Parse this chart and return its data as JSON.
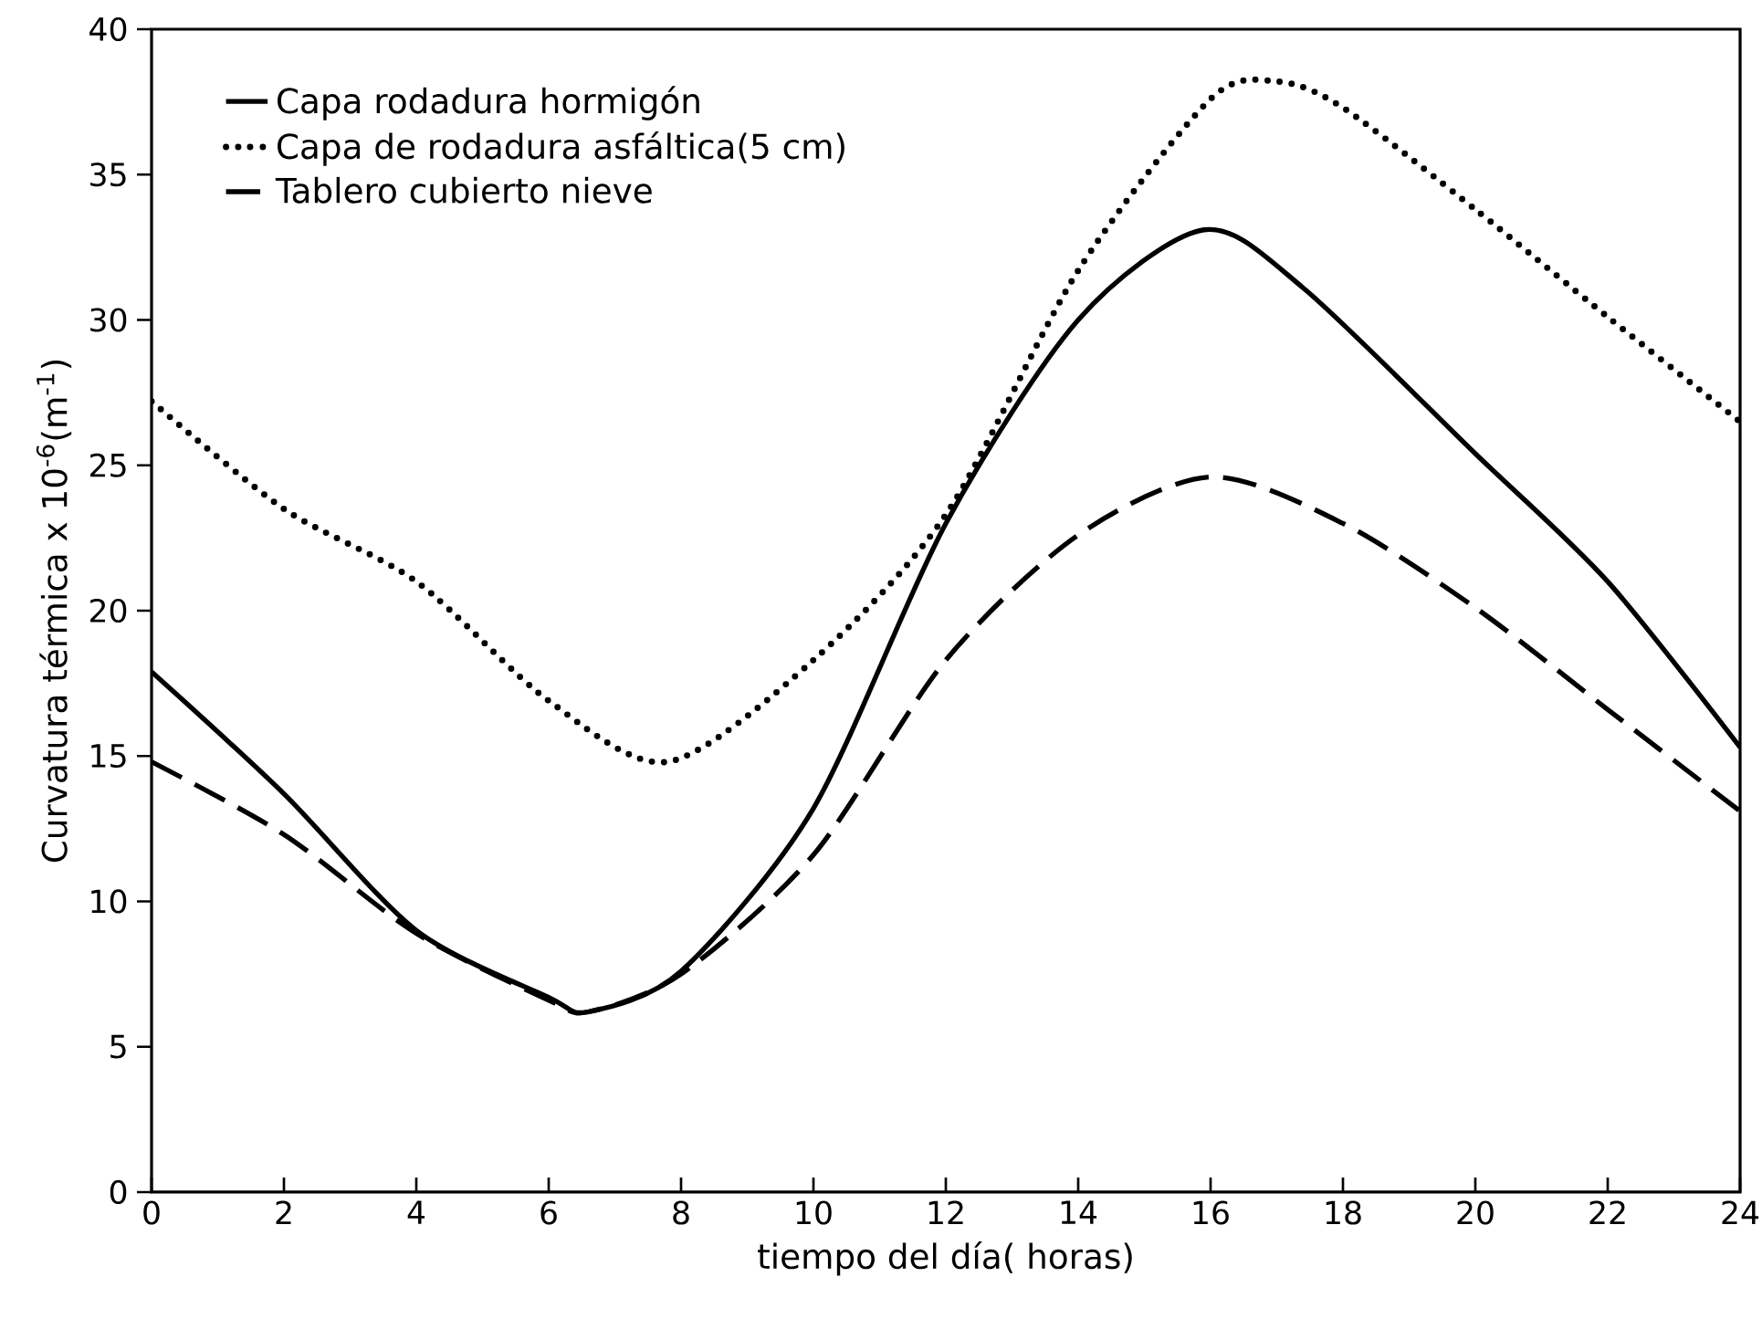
{
  "chart_data": {
    "type": "line",
    "xlabel": "tiempo del día( horas)",
    "ylabel": "Curvatura térmica  x 10$^{-6}$(m$^{-1}$)",
    "xlim": [
      0,
      24
    ],
    "ylim": [
      0,
      40
    ],
    "xticks": [
      0,
      2,
      4,
      6,
      8,
      10,
      12,
      14,
      16,
      18,
      20,
      22,
      24
    ],
    "yticks": [
      0,
      5,
      10,
      15,
      20,
      25,
      30,
      35,
      40
    ],
    "grid": false,
    "legend": "top left",
    "series": [
      {
        "name": "Capa rodadura hormigón",
        "color": "#000000",
        "line_style": "solid",
        "x": [
          0,
          2,
          4,
          6,
          6.6,
          8,
          10,
          12,
          14,
          15.9,
          17.4,
          20,
          22,
          24
        ],
        "values": [
          17.9,
          13.7,
          9.0,
          6.7,
          6.2,
          7.6,
          13.2,
          23.0,
          30.0,
          33.1,
          31.1,
          25.4,
          21.0,
          15.3
        ]
      },
      {
        "name": "Capa de rodadura asfáltica(5 cm)",
        "color": "#000000",
        "line_style": "dotted",
        "x": [
          0,
          2,
          4,
          6,
          7.8,
          10,
          12,
          14,
          16,
          17,
          18,
          20,
          22,
          24
        ],
        "values": [
          27.2,
          23.5,
          21.0,
          16.9,
          14.8,
          18.3,
          23.3,
          31.7,
          37.6,
          38.2,
          37.3,
          33.8,
          30.1,
          26.5
        ]
      },
      {
        "name": "Tablero cubierto nieve",
        "color": "#000000",
        "line_style": "dashed",
        "x": [
          0,
          2,
          4,
          6,
          6.6,
          8,
          10,
          12,
          14,
          16,
          18,
          20,
          22,
          24
        ],
        "values": [
          14.8,
          12.3,
          8.9,
          6.6,
          6.2,
          7.5,
          11.6,
          18.3,
          22.6,
          24.6,
          23.0,
          20.1,
          16.6,
          13.1
        ]
      }
    ]
  }
}
